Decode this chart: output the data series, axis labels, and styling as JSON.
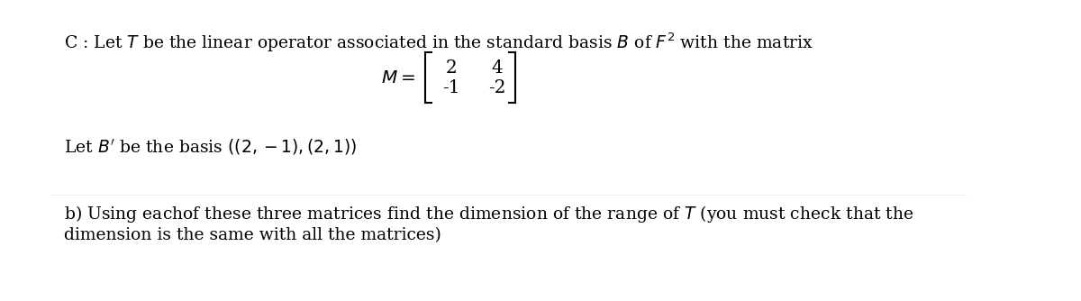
{
  "background_color": "#ffffff",
  "line1": "C : Let $T$ be the linear operator associated in the standard basis $B$ of $F^2$ with the matrix",
  "matrix_label": "$M = $",
  "matrix_row1": [
    "2",
    "4"
  ],
  "matrix_row2": [
    "-1",
    "-2"
  ],
  "line2": "Let $B'$ be the basis $((2,-1),(2,1))$",
  "line3": "b) Using eachof these three matrices find the dimension of the range of $T$ (you must check that the",
  "line4": "dimension is the same with all the matrices)",
  "text_color": "#000000",
  "fontsize_main": 13.5,
  "fontsize_matrix": 14
}
